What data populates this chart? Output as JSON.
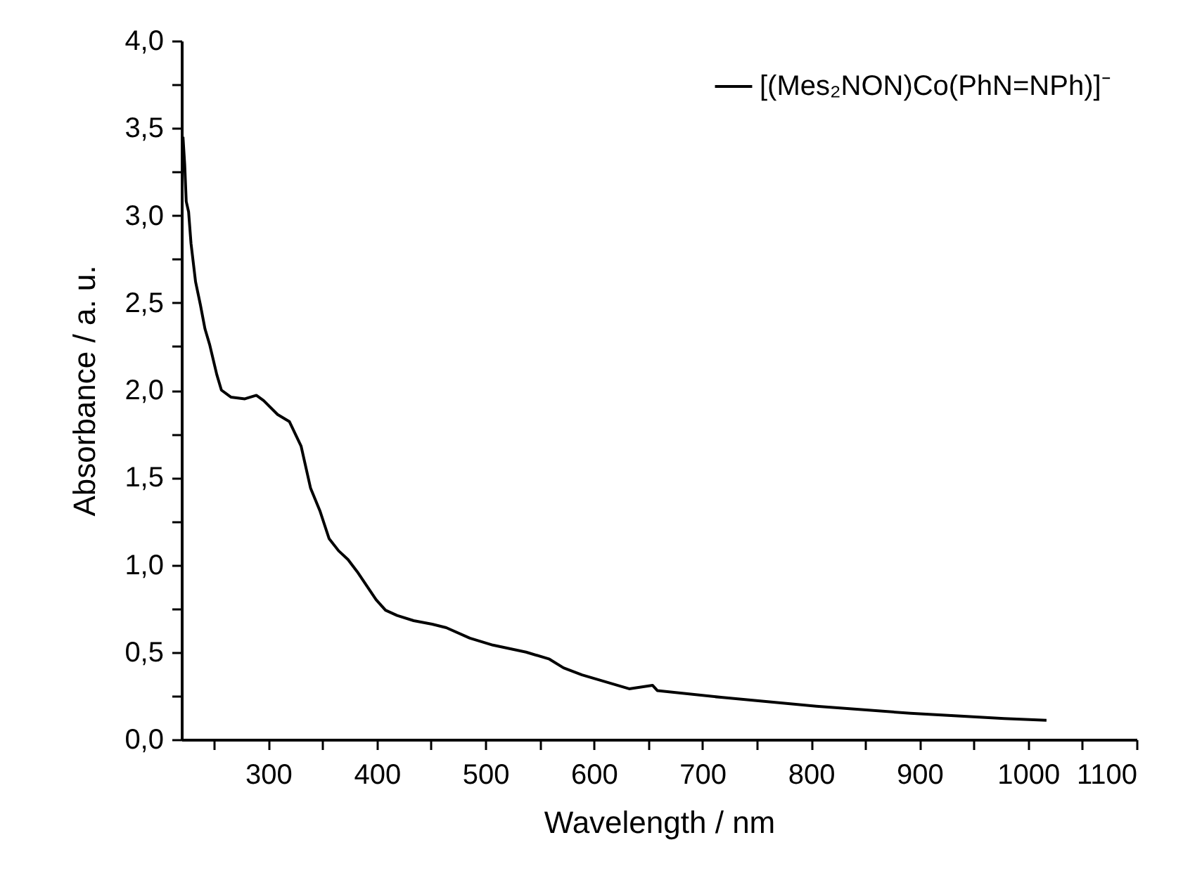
{
  "chart_data": {
    "type": "line",
    "xlabel": "Wavelength / nm",
    "ylabel": "Absorbance / a. u.",
    "x": [
      221.4,
      223,
      224.4,
      226.6,
      228.8,
      233,
      237.4,
      241.7,
      246,
      252.5,
      256.8,
      265.5,
      278.4,
      289,
      295.7,
      308.6,
      319.4,
      330.2,
      338.9,
      347.5,
      356,
      364.8,
      373.4,
      382,
      390.7,
      399.3,
      408,
      418.7,
      433.9,
      451,
      464,
      485.7,
      507,
      537.5,
      559,
      572,
      589,
      632.5,
      654,
      658.4,
      718.7,
      805,
      891.6,
      978,
      1017
    ],
    "series": [
      {
        "name": "[(Mes₂NON)Co(PhN=NPh)]⁻",
        "color": "#000000",
        "values": [
          3.45,
          3.29,
          3.08,
          3.02,
          2.84,
          2.62,
          2.49,
          2.35,
          2.26,
          2.09,
          2.0,
          1.96,
          1.95,
          1.97,
          1.94,
          1.86,
          1.82,
          1.68,
          1.44,
          1.31,
          1.15,
          1.08,
          1.03,
          0.96,
          0.88,
          0.8,
          0.74,
          0.71,
          0.68,
          0.66,
          0.64,
          0.58,
          0.54,
          0.5,
          0.46,
          0.41,
          0.37,
          0.29,
          0.31,
          0.28,
          0.24,
          0.19,
          0.15,
          0.12,
          0.11
        ]
      }
    ],
    "xlim": [
      220,
      1100
    ],
    "xticks": [
      {
        "value": 250,
        "label": null
      },
      300,
      {
        "value": 350,
        "label": null
      },
      400,
      {
        "value": 450,
        "label": null
      },
      500,
      {
        "value": 550,
        "label": null
      },
      600,
      {
        "value": 650,
        "label": null
      },
      700,
      {
        "value": 750,
        "label": null
      },
      800,
      {
        "value": 850,
        "label": null
      },
      900,
      {
        "value": 950,
        "label": null
      },
      1000,
      {
        "value": 1050,
        "label": null
      },
      1100
    ],
    "ylim": [
      0,
      4
    ],
    "yticks": [
      {
        "value": 0,
        "label": "0,0"
      },
      {
        "value": 0.25,
        "label": null
      },
      {
        "value": 0.5,
        "label": "0,5"
      },
      {
        "value": 0.75,
        "label": null
      },
      {
        "value": 1,
        "label": "1,0"
      },
      {
        "value": 1.25,
        "label": null
      },
      {
        "value": 1.5,
        "label": "1,5"
      },
      {
        "value": 1.75,
        "label": null
      },
      {
        "value": 2,
        "label": "2,0"
      },
      {
        "value": 2.25,
        "label": null
      },
      {
        "value": 2.5,
        "label": "2,5"
      },
      {
        "value": 2.75,
        "label": null
      },
      {
        "value": 3,
        "label": "3,0"
      },
      {
        "value": 3.25,
        "label": null
      },
      {
        "value": 3.5,
        "label": "3,5"
      },
      {
        "value": 3.75,
        "label": null
      },
      {
        "value": 4,
        "label": "4,0"
      }
    ],
    "grid": false,
    "legend": "top right",
    "marker": "none",
    "line_style": "solid"
  }
}
